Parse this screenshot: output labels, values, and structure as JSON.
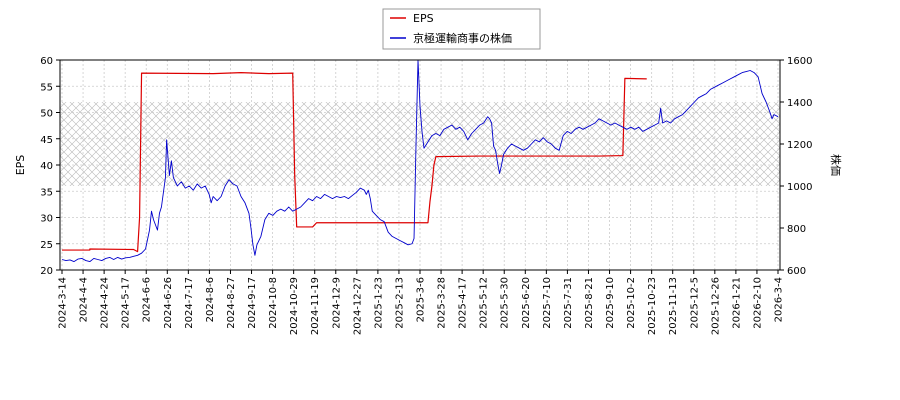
{
  "chart_data": {
    "type": "line",
    "ylabel_left": "EPS",
    "ylabel_right": "株価",
    "ylim_left": [
      20,
      60
    ],
    "ylim_right": [
      600,
      1600
    ],
    "left_ticks": [
      20,
      25,
      30,
      35,
      40,
      45,
      50,
      55,
      60
    ],
    "right_ticks": [
      600,
      800,
      1000,
      1200,
      1400,
      1600
    ],
    "x_tick_labels": [
      "2024-3-14",
      "2024-4-4",
      "2024-4-24",
      "2024-5-17",
      "2024-6-6",
      "2024-6-26",
      "2024-7-17",
      "2024-8-6",
      "2024-8-27",
      "2024-9-17",
      "2024-10-8",
      "2024-10-29",
      "2024-11-19",
      "2024-12-9",
      "2024-12-27",
      "2025-1-23",
      "2025-2-13",
      "2025-3-6",
      "2025-3-28",
      "2025-4-17",
      "2025-5-12",
      "2025-5-30",
      "2025-6-20",
      "2025-7-10",
      "2025-7-31",
      "2025-8-21",
      "2025-9-10",
      "2025-10-2",
      "2025-10-23",
      "2025-11-13",
      "2025-12-5",
      "2025-12-26",
      "2026-1-21",
      "2026-2-10",
      "2026-3-4"
    ],
    "shaded_band_right": [
      1000,
      1400
    ],
    "grid": true,
    "legend_position": "top-center",
    "series": [
      {
        "name": "EPS",
        "axis": "left",
        "color": "#dd0000",
        "points": [
          [
            0,
            23.8
          ],
          [
            7,
            23.8
          ],
          [
            7,
            24.0
          ],
          [
            18,
            23.9
          ],
          [
            19,
            23.5
          ],
          [
            19.5,
            30
          ],
          [
            20,
            57.5
          ],
          [
            38,
            57.4
          ],
          [
            45,
            57.6
          ],
          [
            52,
            57.4
          ],
          [
            58,
            57.5
          ],
          [
            58.5,
            38
          ],
          [
            59,
            28.2
          ],
          [
            63,
            28.2
          ],
          [
            64,
            29.0
          ],
          [
            72,
            29.0
          ],
          [
            80,
            29.0
          ],
          [
            86,
            29.0
          ],
          [
            92,
            29.0
          ],
          [
            92.5,
            33
          ],
          [
            93,
            36
          ],
          [
            93.5,
            40
          ],
          [
            94,
            41.6
          ],
          [
            105,
            41.7
          ],
          [
            120,
            41.7
          ],
          [
            135,
            41.7
          ],
          [
            141,
            41.8
          ],
          [
            141.5,
            56.5
          ],
          [
            147,
            56.4
          ]
        ]
      },
      {
        "name": "京極運輸商事の株価",
        "axis": "right",
        "color": "#0000cc",
        "points": [
          [
            0,
            650
          ],
          [
            1,
            645
          ],
          [
            2,
            648
          ],
          [
            3,
            640
          ],
          [
            4,
            652
          ],
          [
            5,
            655
          ],
          [
            6,
            645
          ],
          [
            7,
            640
          ],
          [
            8,
            655
          ],
          [
            9,
            650
          ],
          [
            10,
            645
          ],
          [
            11,
            655
          ],
          [
            12,
            660
          ],
          [
            13,
            650
          ],
          [
            14,
            660
          ],
          [
            15,
            652
          ],
          [
            16,
            658
          ],
          [
            17,
            660
          ],
          [
            18,
            665
          ],
          [
            19,
            670
          ],
          [
            20,
            680
          ],
          [
            21,
            700
          ],
          [
            22,
            790
          ],
          [
            22.5,
            880
          ],
          [
            23,
            840
          ],
          [
            24,
            790
          ],
          [
            24.5,
            870
          ],
          [
            25,
            900
          ],
          [
            26,
            1040
          ],
          [
            26.3,
            1220
          ],
          [
            27,
            1050
          ],
          [
            27.5,
            1120
          ],
          [
            28,
            1040
          ],
          [
            29,
            1000
          ],
          [
            30,
            1020
          ],
          [
            31,
            990
          ],
          [
            32,
            1000
          ],
          [
            33,
            980
          ],
          [
            34,
            1010
          ],
          [
            35,
            990
          ],
          [
            36,
            1000
          ],
          [
            37,
            960
          ],
          [
            37.5,
            920
          ],
          [
            38,
            950
          ],
          [
            39,
            930
          ],
          [
            40,
            950
          ],
          [
            41,
            1000
          ],
          [
            42,
            1030
          ],
          [
            43,
            1010
          ],
          [
            44,
            1000
          ],
          [
            45,
            950
          ],
          [
            46,
            920
          ],
          [
            47,
            870
          ],
          [
            47.5,
            800
          ],
          [
            48,
            720
          ],
          [
            48.5,
            670
          ],
          [
            49,
            720
          ],
          [
            50,
            760
          ],
          [
            51,
            840
          ],
          [
            52,
            870
          ],
          [
            53,
            860
          ],
          [
            54,
            880
          ],
          [
            55,
            890
          ],
          [
            56,
            880
          ],
          [
            57,
            900
          ],
          [
            58,
            880
          ],
          [
            59,
            890
          ],
          [
            60,
            900
          ],
          [
            61,
            920
          ],
          [
            62,
            940
          ],
          [
            63,
            930
          ],
          [
            64,
            950
          ],
          [
            65,
            940
          ],
          [
            66,
            960
          ],
          [
            67,
            950
          ],
          [
            68,
            940
          ],
          [
            69,
            950
          ],
          [
            70,
            945
          ],
          [
            71,
            950
          ],
          [
            72,
            940
          ],
          [
            73,
            955
          ],
          [
            74,
            970
          ],
          [
            75,
            990
          ],
          [
            76,
            980
          ],
          [
            76.5,
            960
          ],
          [
            77,
            980
          ],
          [
            77.5,
            940
          ],
          [
            78,
            880
          ],
          [
            79,
            860
          ],
          [
            80,
            840
          ],
          [
            81,
            830
          ],
          [
            82,
            780
          ],
          [
            83,
            760
          ],
          [
            84,
            750
          ],
          [
            85,
            740
          ],
          [
            86,
            730
          ],
          [
            87,
            720
          ],
          [
            88,
            725
          ],
          [
            88.5,
            750
          ],
          [
            89,
            1200
          ],
          [
            89.5,
            1600
          ],
          [
            90,
            1380
          ],
          [
            90.5,
            1260
          ],
          [
            91,
            1180
          ],
          [
            92,
            1210
          ],
          [
            93,
            1240
          ],
          [
            94,
            1250
          ],
          [
            95,
            1240
          ],
          [
            96,
            1270
          ],
          [
            97,
            1280
          ],
          [
            98,
            1290
          ],
          [
            99,
            1270
          ],
          [
            100,
            1280
          ],
          [
            101,
            1260
          ],
          [
            102,
            1220
          ],
          [
            103,
            1250
          ],
          [
            104,
            1270
          ],
          [
            105,
            1290
          ],
          [
            106,
            1300
          ],
          [
            107,
            1330
          ],
          [
            107.5,
            1320
          ],
          [
            108,
            1300
          ],
          [
            108.5,
            1190
          ],
          [
            109,
            1170
          ],
          [
            109.5,
            1110
          ],
          [
            110,
            1060
          ],
          [
            110.5,
            1100
          ],
          [
            111,
            1150
          ],
          [
            112,
            1180
          ],
          [
            113,
            1200
          ],
          [
            114,
            1190
          ],
          [
            115,
            1180
          ],
          [
            116,
            1170
          ],
          [
            117,
            1180
          ],
          [
            118,
            1200
          ],
          [
            119,
            1220
          ],
          [
            120,
            1210
          ],
          [
            121,
            1230
          ],
          [
            122,
            1210
          ],
          [
            123,
            1200
          ],
          [
            124,
            1180
          ],
          [
            125,
            1170
          ],
          [
            126,
            1240
          ],
          [
            127,
            1260
          ],
          [
            128,
            1250
          ],
          [
            129,
            1270
          ],
          [
            130,
            1280
          ],
          [
            131,
            1270
          ],
          [
            132,
            1280
          ],
          [
            133,
            1290
          ],
          [
            134,
            1300
          ],
          [
            135,
            1320
          ],
          [
            136,
            1310
          ],
          [
            137,
            1300
          ],
          [
            138,
            1290
          ],
          [
            139,
            1300
          ],
          [
            140,
            1290
          ],
          [
            141,
            1280
          ],
          [
            142,
            1270
          ],
          [
            143,
            1280
          ],
          [
            144,
            1270
          ],
          [
            145,
            1280
          ],
          [
            146,
            1260
          ],
          [
            147,
            1270
          ],
          [
            148,
            1280
          ],
          [
            149,
            1290
          ],
          [
            150,
            1300
          ],
          [
            150.5,
            1370
          ],
          [
            151,
            1300
          ],
          [
            152,
            1310
          ],
          [
            153,
            1300
          ],
          [
            154,
            1320
          ],
          [
            155,
            1330
          ],
          [
            156,
            1340
          ],
          [
            157,
            1360
          ],
          [
            158,
            1380
          ],
          [
            159,
            1400
          ],
          [
            160,
            1420
          ],
          [
            161,
            1430
          ],
          [
            162,
            1440
          ],
          [
            163,
            1460
          ],
          [
            164,
            1470
          ],
          [
            165,
            1480
          ],
          [
            166,
            1490
          ],
          [
            167,
            1500
          ],
          [
            168,
            1510
          ],
          [
            169,
            1520
          ],
          [
            170,
            1530
          ],
          [
            171,
            1540
          ],
          [
            172,
            1545
          ],
          [
            173,
            1550
          ],
          [
            174,
            1540
          ],
          [
            175,
            1520
          ],
          [
            175.5,
            1480
          ],
          [
            176,
            1440
          ],
          [
            177,
            1400
          ],
          [
            178,
            1350
          ],
          [
            178.5,
            1320
          ],
          [
            179,
            1340
          ],
          [
            180,
            1330
          ]
        ]
      }
    ]
  },
  "legend": {
    "items": [
      {
        "label": "EPS",
        "color": "#dd0000"
      },
      {
        "label": "京極運輸商事の株価",
        "color": "#0000cc"
      }
    ]
  }
}
